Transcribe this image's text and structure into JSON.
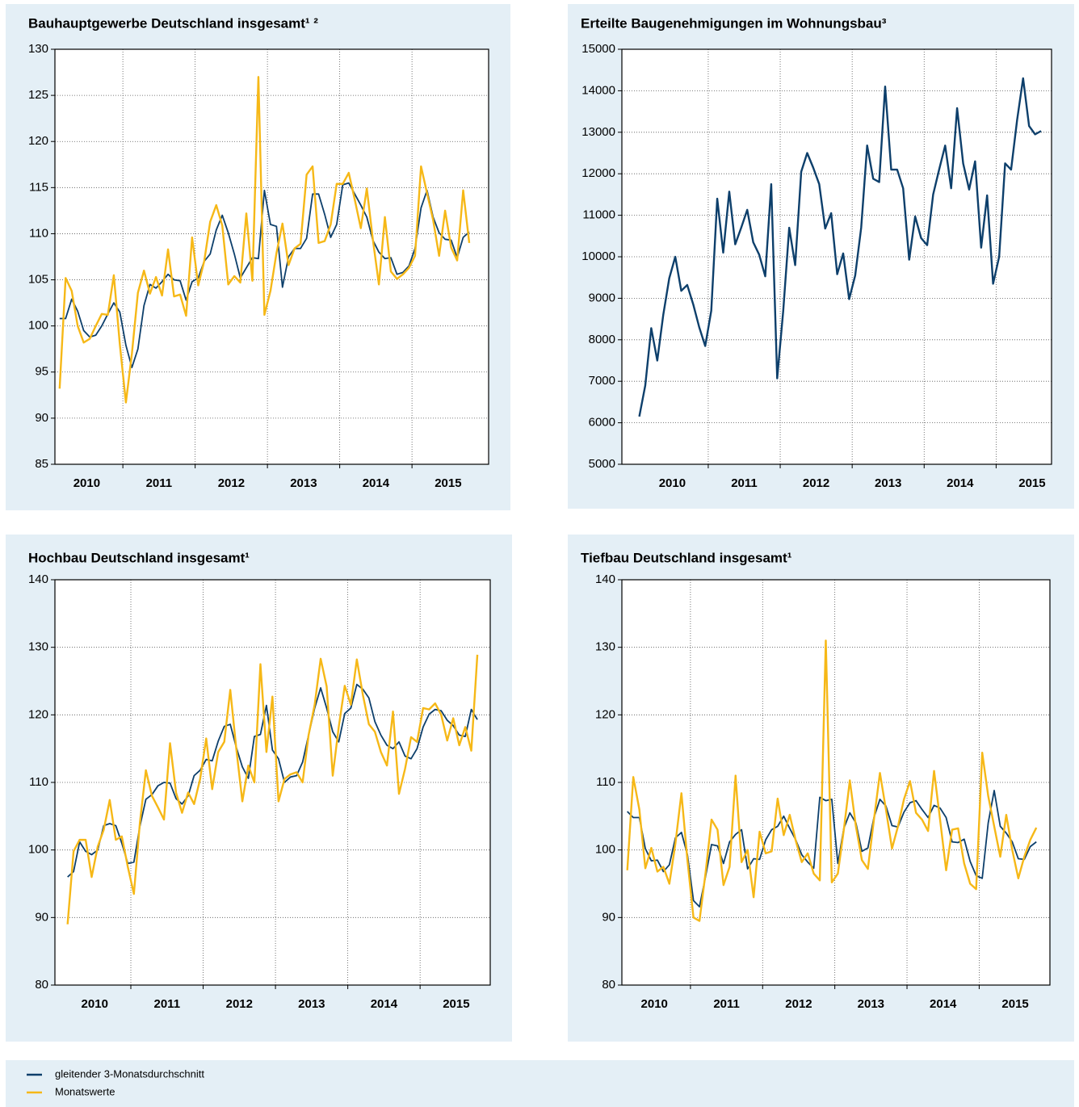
{
  "chart_data": [
    {
      "type": "line",
      "title": "Bauhauptgewerbe Deutschland insgesamt¹ ²",
      "x": [
        2010.125,
        2010.208,
        2010.292,
        2010.375,
        2010.458,
        2010.542,
        2010.625,
        2010.708,
        2010.792,
        2010.875,
        2010.958,
        2011.042,
        2011.125,
        2011.208,
        2011.292,
        2011.375,
        2011.458,
        2011.542,
        2011.625,
        2011.708,
        2011.792,
        2011.875,
        2011.958,
        2012.042,
        2012.125,
        2012.208,
        2012.292,
        2012.375,
        2012.458,
        2012.542,
        2012.625,
        2012.708,
        2012.792,
        2012.875,
        2012.958,
        2013.042,
        2013.125,
        2013.208,
        2013.292,
        2013.375,
        2013.458,
        2013.542,
        2013.625,
        2013.708,
        2013.792,
        2013.875,
        2013.958,
        2014.042,
        2014.125,
        2014.208,
        2014.292,
        2014.375,
        2014.458,
        2014.542,
        2014.625,
        2014.708,
        2014.792,
        2014.875,
        2014.958,
        2015.042,
        2015.125,
        2015.208,
        2015.292,
        2015.375,
        2015.458,
        2015.542,
        2015.625,
        2015.708,
        2015.792
      ],
      "xlim": [
        2010.06,
        2016.06
      ],
      "xticks": [
        {
          "value": 2010.5,
          "label": "2010"
        },
        {
          "value": 2011.5,
          "label": "2011"
        },
        {
          "value": 2012.5,
          "label": "2012"
        },
        {
          "value": 2013.5,
          "label": "2013"
        },
        {
          "value": 2014.5,
          "label": "2014"
        },
        {
          "value": 2015.5,
          "label": "2015"
        }
      ],
      "xgrid": [
        2011,
        2012,
        2013,
        2014,
        2015
      ],
      "ylim": [
        85,
        130
      ],
      "yticks": [
        85,
        90,
        95,
        100,
        105,
        110,
        115,
        120,
        125,
        130
      ],
      "grid": true,
      "series": [
        {
          "color": "#0d3f6b",
          "values": [
            100.8,
            100.8,
            102.9,
            101.6,
            99.5,
            98.8,
            99,
            100,
            101.3,
            102.5,
            101.5,
            97.9,
            95.5,
            97.5,
            102.2,
            104.5,
            104.1,
            104.8,
            105.6,
            105,
            104.9,
            102.8,
            104.8,
            105.2,
            107,
            107.8,
            110.4,
            112,
            110.1,
            107.8,
            105.2,
            106.3,
            107.4,
            107.3,
            114.7,
            111,
            110.8,
            104.2,
            107.5,
            108.4,
            108.4,
            109.5,
            114.3,
            114.3,
            112.1,
            109.6,
            111,
            115.3,
            115.5,
            114.3,
            113.1,
            111.8,
            109.3,
            108,
            107.3,
            107.4,
            105.6,
            105.8,
            106.5,
            108.4,
            112.8,
            114.7,
            111.8,
            110.1,
            109.4,
            109.3,
            107.4,
            109.6,
            110.2
          ]
        },
        {
          "color": "#f6b817",
          "values": [
            93.2,
            105.2,
            103.8,
            100,
            98.2,
            98.6,
            100,
            101.3,
            101.2,
            105.5,
            98,
            91.7,
            97,
            103.6,
            106,
            103.5,
            105.3,
            103.3,
            108.3,
            103.2,
            103.4,
            101.1,
            109.6,
            104.4,
            107,
            111.3,
            113.1,
            110.9,
            104.5,
            105.4,
            104.7,
            112.2,
            104.9,
            127,
            101.2,
            103.8,
            107.9,
            111.1,
            106.6,
            108.4,
            108.9,
            116.4,
            117.3,
            109,
            109.2,
            111,
            115.4,
            115.4,
            116.6,
            113.7,
            110.6,
            114.9,
            109.4,
            104.5,
            111.8,
            105.9,
            105.1,
            105.6,
            106.3,
            107.6,
            117.3,
            114.4,
            111.5,
            107.6,
            112.5,
            108.5,
            107.1,
            114.7,
            109
          ]
        }
      ]
    },
    {
      "type": "line",
      "title": "Erteilte Baugenehmigungen im Wohnungsbau³",
      "x": [
        2010.042,
        2010.125,
        2010.208,
        2010.292,
        2010.375,
        2010.458,
        2010.542,
        2010.625,
        2010.708,
        2010.792,
        2010.875,
        2010.958,
        2011.042,
        2011.125,
        2011.208,
        2011.292,
        2011.375,
        2011.458,
        2011.542,
        2011.625,
        2011.708,
        2011.792,
        2011.875,
        2011.958,
        2012.042,
        2012.125,
        2012.208,
        2012.292,
        2012.375,
        2012.458,
        2012.542,
        2012.625,
        2012.708,
        2012.792,
        2012.875,
        2012.958,
        2013.042,
        2013.125,
        2013.208,
        2013.292,
        2013.375,
        2013.458,
        2013.542,
        2013.625,
        2013.708,
        2013.792,
        2013.875,
        2013.958,
        2014.042,
        2014.125,
        2014.208,
        2014.292,
        2014.375,
        2014.458,
        2014.542,
        2014.625,
        2014.708,
        2014.792,
        2014.875,
        2014.958,
        2015.042,
        2015.125,
        2015.208,
        2015.292,
        2015.375,
        2015.458,
        2015.542,
        2015.625
      ],
      "xlim": [
        2009.8,
        2015.77
      ],
      "xticks": [
        {
          "value": 2010.5,
          "label": "2010"
        },
        {
          "value": 2011.5,
          "label": "2011"
        },
        {
          "value": 2012.5,
          "label": "2012"
        },
        {
          "value": 2013.5,
          "label": "2013"
        },
        {
          "value": 2014.5,
          "label": "2014"
        },
        {
          "value": 2015.5,
          "label": "2015"
        }
      ],
      "xgrid": [
        2011,
        2012,
        2013,
        2014,
        2015
      ],
      "ylim": [
        5000,
        15000
      ],
      "yticks": [
        5000,
        6000,
        7000,
        8000,
        9000,
        10000,
        11000,
        12000,
        13000,
        14000,
        15000
      ],
      "grid": true,
      "series": [
        {
          "color": "#0d3f6b",
          "values": [
            6150,
            6900,
            8280,
            7500,
            8600,
            9480,
            10000,
            9180,
            9320,
            8850,
            8300,
            7850,
            8700,
            11400,
            10100,
            11570,
            10300,
            10700,
            11130,
            10350,
            10050,
            9530,
            11750,
            7070,
            8700,
            10700,
            9800,
            12050,
            12500,
            12150,
            11750,
            10680,
            11050,
            9580,
            10080,
            8980,
            9550,
            10700,
            12680,
            11880,
            11800,
            14100,
            12100,
            12100,
            11650,
            9930,
            10970,
            10450,
            10280,
            11500,
            12100,
            12680,
            11650,
            13580,
            12250,
            11620,
            12300,
            10220,
            11480,
            9350,
            10000,
            12250,
            12100,
            13300,
            14300,
            13150,
            12950,
            13030
          ]
        }
      ]
    },
    {
      "type": "line",
      "title": "Hochbau Deutschland insgesamt¹",
      "x": [
        2010.125,
        2010.208,
        2010.292,
        2010.375,
        2010.458,
        2010.542,
        2010.625,
        2010.708,
        2010.792,
        2010.875,
        2010.958,
        2011.042,
        2011.125,
        2011.208,
        2011.292,
        2011.375,
        2011.458,
        2011.542,
        2011.625,
        2011.708,
        2011.792,
        2011.875,
        2011.958,
        2012.042,
        2012.125,
        2012.208,
        2012.292,
        2012.375,
        2012.458,
        2012.542,
        2012.625,
        2012.708,
        2012.792,
        2012.875,
        2012.958,
        2013.042,
        2013.125,
        2013.208,
        2013.292,
        2013.375,
        2013.458,
        2013.542,
        2013.625,
        2013.708,
        2013.792,
        2013.875,
        2013.958,
        2014.042,
        2014.125,
        2014.208,
        2014.292,
        2014.375,
        2014.458,
        2014.542,
        2014.625,
        2014.708,
        2014.792,
        2014.875,
        2014.958,
        2015.042,
        2015.125,
        2015.208,
        2015.292,
        2015.375,
        2015.458,
        2015.542,
        2015.625,
        2015.708,
        2015.792
      ],
      "xlim": [
        2009.95,
        2015.97
      ],
      "xticks": [
        {
          "value": 2010.5,
          "label": "2010"
        },
        {
          "value": 2011.5,
          "label": "2011"
        },
        {
          "value": 2012.5,
          "label": "2012"
        },
        {
          "value": 2013.5,
          "label": "2013"
        },
        {
          "value": 2014.5,
          "label": "2014"
        },
        {
          "value": 2015.5,
          "label": "2015"
        }
      ],
      "xgrid": [
        2011,
        2012,
        2013,
        2014,
        2015
      ],
      "ylim": [
        80,
        140
      ],
      "yticks": [
        80,
        90,
        100,
        110,
        120,
        130,
        140
      ],
      "grid": true,
      "series": [
        {
          "color": "#0d3f6b",
          "values": [
            96,
            96.8,
            101.2,
            99.8,
            99.3,
            100,
            103.6,
            103.9,
            103.6,
            101,
            98,
            98.2,
            103.5,
            107.5,
            108.2,
            109.5,
            110,
            109.9,
            107.6,
            106.8,
            108,
            111,
            111.8,
            113.4,
            113.2,
            116.1,
            118.3,
            118.6,
            115.2,
            112.3,
            110.6,
            116.8,
            117.1,
            121.4,
            114.8,
            113.5,
            110,
            110.8,
            111,
            113,
            117,
            121,
            124,
            121,
            117.5,
            116,
            120.2,
            121,
            124.5,
            123.8,
            122.5,
            119,
            117,
            115.5,
            115,
            116,
            113.9,
            113.5,
            115,
            118.2,
            120.1,
            120.8,
            120.6,
            119.2,
            118.4,
            117,
            116.8,
            120.8,
            119.3
          ]
        },
        {
          "color": "#f6b817",
          "values": [
            89,
            99.8,
            101.5,
            101.5,
            96,
            100.5,
            103,
            107.4,
            101.5,
            102,
            97.5,
            93.5,
            104,
            111.8,
            108,
            106.3,
            104.5,
            115.8,
            108.5,
            105.5,
            108.5,
            106.8,
            110.5,
            116.5,
            109,
            114.5,
            116,
            123.7,
            115,
            107.2,
            112.5,
            110,
            127.5,
            114.5,
            122.7,
            107.2,
            110.5,
            111.2,
            111.5,
            110,
            117,
            121.5,
            128.3,
            124.2,
            111,
            118.2,
            124.3,
            121.5,
            128.2,
            123,
            118.6,
            117.5,
            114.5,
            112.5,
            120.5,
            108.3,
            112,
            116.7,
            116,
            121,
            120.8,
            121.7,
            120,
            116.2,
            119.5,
            115.5,
            118.2,
            114.7,
            128.9
          ]
        }
      ]
    },
    {
      "type": "line",
      "title": "Tiefbau Deutschland insgesamt¹",
      "x": [
        2010.125,
        2010.208,
        2010.292,
        2010.375,
        2010.458,
        2010.542,
        2010.625,
        2010.708,
        2010.792,
        2010.875,
        2010.958,
        2011.042,
        2011.125,
        2011.208,
        2011.292,
        2011.375,
        2011.458,
        2011.542,
        2011.625,
        2011.708,
        2011.792,
        2011.875,
        2011.958,
        2012.042,
        2012.125,
        2012.208,
        2012.292,
        2012.375,
        2012.458,
        2012.542,
        2012.625,
        2012.708,
        2012.792,
        2012.875,
        2012.958,
        2013.042,
        2013.125,
        2013.208,
        2013.292,
        2013.375,
        2013.458,
        2013.542,
        2013.625,
        2013.708,
        2013.792,
        2013.875,
        2013.958,
        2014.042,
        2014.125,
        2014.208,
        2014.292,
        2014.375,
        2014.458,
        2014.542,
        2014.625,
        2014.708,
        2014.792,
        2014.875,
        2014.958,
        2015.042,
        2015.125,
        2015.208,
        2015.292,
        2015.375,
        2015.458,
        2015.542,
        2015.625,
        2015.708,
        2015.792
      ],
      "xlim": [
        2010.05,
        2015.98
      ],
      "xticks": [
        {
          "value": 2010.5,
          "label": "2010"
        },
        {
          "value": 2011.5,
          "label": "2011"
        },
        {
          "value": 2012.5,
          "label": "2012"
        },
        {
          "value": 2013.5,
          "label": "2013"
        },
        {
          "value": 2014.5,
          "label": "2014"
        },
        {
          "value": 2015.5,
          "label": "2015"
        }
      ],
      "xgrid": [
        2011,
        2012,
        2013,
        2014,
        2015
      ],
      "ylim": [
        80,
        140
      ],
      "yticks": [
        80,
        90,
        100,
        110,
        120,
        130,
        140
      ],
      "grid": true,
      "series": [
        {
          "color": "#0d3f6b",
          "values": [
            105.7,
            104.8,
            104.8,
            100.2,
            98.4,
            98.5,
            96.8,
            97.8,
            101.8,
            102.6,
            99.3,
            92.5,
            91.6,
            96,
            100.8,
            100.6,
            98,
            101.2,
            102.3,
            103,
            97.2,
            98.7,
            98.6,
            101.5,
            103,
            103.5,
            105,
            103.2,
            101.5,
            99.3,
            98.2,
            97.3,
            107.8,
            107.3,
            107.5,
            98,
            103.2,
            105.5,
            104,
            99.8,
            100.3,
            104.8,
            107.5,
            106.5,
            103.6,
            103.4,
            105.6,
            107,
            107.3,
            106,
            104.8,
            106.6,
            106.2,
            104.8,
            101.2,
            101.1,
            101.6,
            98.3,
            96.2,
            95.8,
            104,
            108.8,
            103.5,
            102.5,
            101.2,
            98.7,
            98.6,
            100.5,
            101.2
          ]
        },
        {
          "color": "#f6b817",
          "values": [
            97,
            110.8,
            106,
            97.3,
            100.3,
            96.8,
            97.5,
            95,
            101,
            108.4,
            98.5,
            90,
            89.5,
            96.5,
            104.5,
            103,
            94.8,
            97.5,
            111,
            98.2,
            100,
            93,
            102.7,
            99.5,
            99.8,
            107.6,
            102.2,
            105.2,
            101.4,
            98.2,
            99.5,
            96.5,
            95.5,
            131,
            95.2,
            96.5,
            103,
            110.3,
            103.5,
            98.5,
            97.2,
            104.5,
            111.4,
            106,
            100.2,
            103.5,
            107.5,
            110.2,
            105.5,
            104.5,
            102.8,
            111.7,
            104.5,
            97,
            103,
            103.2,
            98,
            95,
            94.2,
            114.4,
            108,
            103.5,
            99,
            105.2,
            100,
            95.8,
            99,
            101.5,
            103.3
          ]
        }
      ]
    }
  ],
  "legend": [
    {
      "name": "gleitender 3-Monatsdurchschnitt",
      "color": "#0d3f6b"
    },
    {
      "name": "Monatswerte",
      "color": "#f6b817"
    }
  ]
}
